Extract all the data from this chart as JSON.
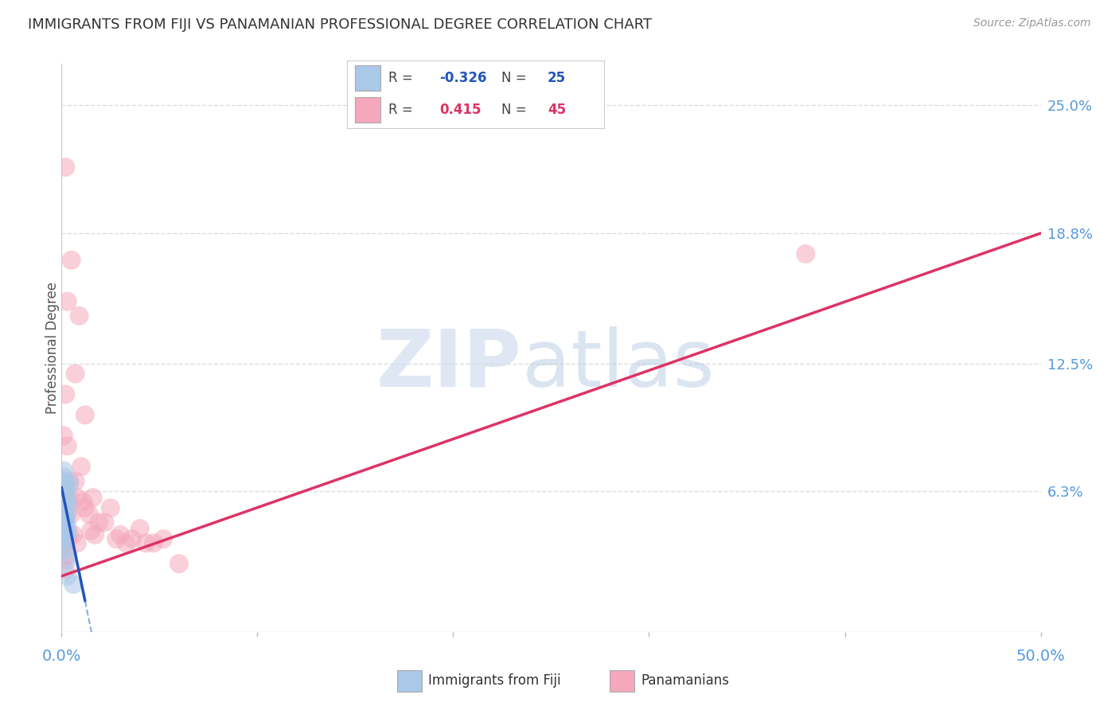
{
  "title": "IMMIGRANTS FROM FIJI VS PANAMANIAN PROFESSIONAL DEGREE CORRELATION CHART",
  "source": "Source: ZipAtlas.com",
  "ylabel": "Professional Degree",
  "ytick_labels": [
    "25.0%",
    "18.8%",
    "12.5%",
    "6.3%"
  ],
  "ytick_values": [
    0.25,
    0.188,
    0.125,
    0.063
  ],
  "xlim": [
    0.0,
    0.5
  ],
  "ylim": [
    -0.005,
    0.27
  ],
  "legend_fiji_R": "-0.326",
  "legend_fiji_N": "25",
  "legend_pana_R": "0.415",
  "legend_pana_N": "45",
  "fiji_color": "#aac8e8",
  "pana_color": "#f5a8bc",
  "fiji_line_color": "#2255bb",
  "pana_line_color": "#dd3366",
  "fiji_points_x": [
    0.001,
    0.002,
    0.002,
    0.001,
    0.003,
    0.002,
    0.003,
    0.001,
    0.002,
    0.002,
    0.001,
    0.002,
    0.003,
    0.002,
    0.001,
    0.001,
    0.002,
    0.002,
    0.001,
    0.003,
    0.004,
    0.002,
    0.003,
    0.006,
    0.003
  ],
  "fiji_points_y": [
    0.05,
    0.052,
    0.048,
    0.045,
    0.055,
    0.06,
    0.058,
    0.04,
    0.044,
    0.042,
    0.038,
    0.035,
    0.03,
    0.065,
    0.07,
    0.068,
    0.062,
    0.05,
    0.073,
    0.046,
    0.067,
    0.064,
    0.042,
    0.018,
    0.022
  ],
  "pana_points_x": [
    0.001,
    0.001,
    0.002,
    0.002,
    0.002,
    0.003,
    0.003,
    0.003,
    0.004,
    0.004,
    0.005,
    0.006,
    0.007,
    0.008,
    0.008,
    0.01,
    0.011,
    0.012,
    0.014,
    0.015,
    0.017,
    0.019,
    0.022,
    0.025,
    0.028,
    0.03,
    0.033,
    0.036,
    0.04,
    0.043,
    0.047,
    0.052,
    0.06,
    0.002,
    0.003,
    0.004,
    0.005,
    0.007,
    0.009,
    0.012,
    0.016,
    0.38,
    0.002,
    0.003,
    0.001
  ],
  "pana_points_y": [
    0.048,
    0.03,
    0.06,
    0.038,
    0.025,
    0.052,
    0.04,
    0.032,
    0.06,
    0.042,
    0.052,
    0.042,
    0.068,
    0.06,
    0.038,
    0.075,
    0.058,
    0.055,
    0.052,
    0.044,
    0.042,
    0.048,
    0.048,
    0.055,
    0.04,
    0.042,
    0.038,
    0.04,
    0.045,
    0.038,
    0.038,
    0.04,
    0.028,
    0.11,
    0.085,
    0.068,
    0.175,
    0.12,
    0.148,
    0.1,
    0.06,
    0.178,
    0.22,
    0.155,
    0.09
  ],
  "pana_line_x0": 0.0,
  "pana_line_y0": 0.022,
  "pana_line_x1": 0.5,
  "pana_line_y1": 0.188,
  "fiji_line_x0": 0.0,
  "fiji_line_y0": 0.065,
  "fiji_line_x1": 0.012,
  "fiji_line_y1": 0.01,
  "grid_color": "#dddddd",
  "bg_color": "#ffffff",
  "title_color": "#333333",
  "axis_label_color": "#5599dd",
  "ytick_color": "#5599dd"
}
